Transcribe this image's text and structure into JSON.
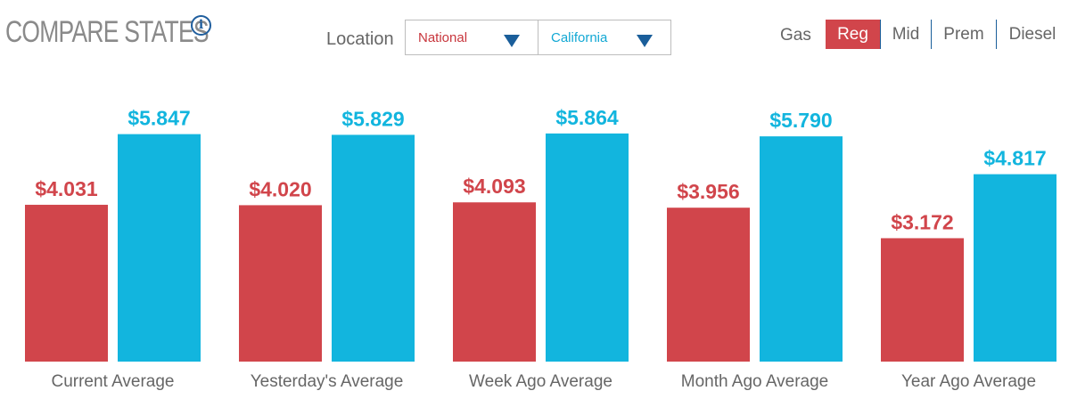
{
  "header": {
    "title": "COMPARE STATES",
    "info_icon": "i"
  },
  "location": {
    "label": "Location",
    "select_a": "National",
    "select_b": "California"
  },
  "gas": {
    "label": "Gas",
    "options": [
      "Reg",
      "Mid",
      "Prem",
      "Diesel"
    ],
    "selected": "Reg"
  },
  "colors": {
    "national": "#d1454b",
    "california": "#12b5de",
    "axis_label": "#666666"
  },
  "chart_data": {
    "type": "bar",
    "categories": [
      "Current Average",
      "Yesterday's Average",
      "Week Ago Average",
      "Month Ago Average",
      "Year Ago Average"
    ],
    "series": [
      {
        "name": "National",
        "values": [
          4.031,
          4.02,
          4.093,
          3.956,
          3.172
        ],
        "labels": [
          "$4.031",
          "$4.020",
          "$4.093",
          "$3.956",
          "$3.172"
        ]
      },
      {
        "name": "California",
        "values": [
          5.847,
          5.829,
          5.864,
          5.79,
          4.817
        ],
        "labels": [
          "$5.847",
          "$5.829",
          "$5.864",
          "$5.790",
          "$4.817"
        ]
      }
    ],
    "ylim": [
      0,
      6.25
    ],
    "grid": false,
    "legend": "none"
  }
}
